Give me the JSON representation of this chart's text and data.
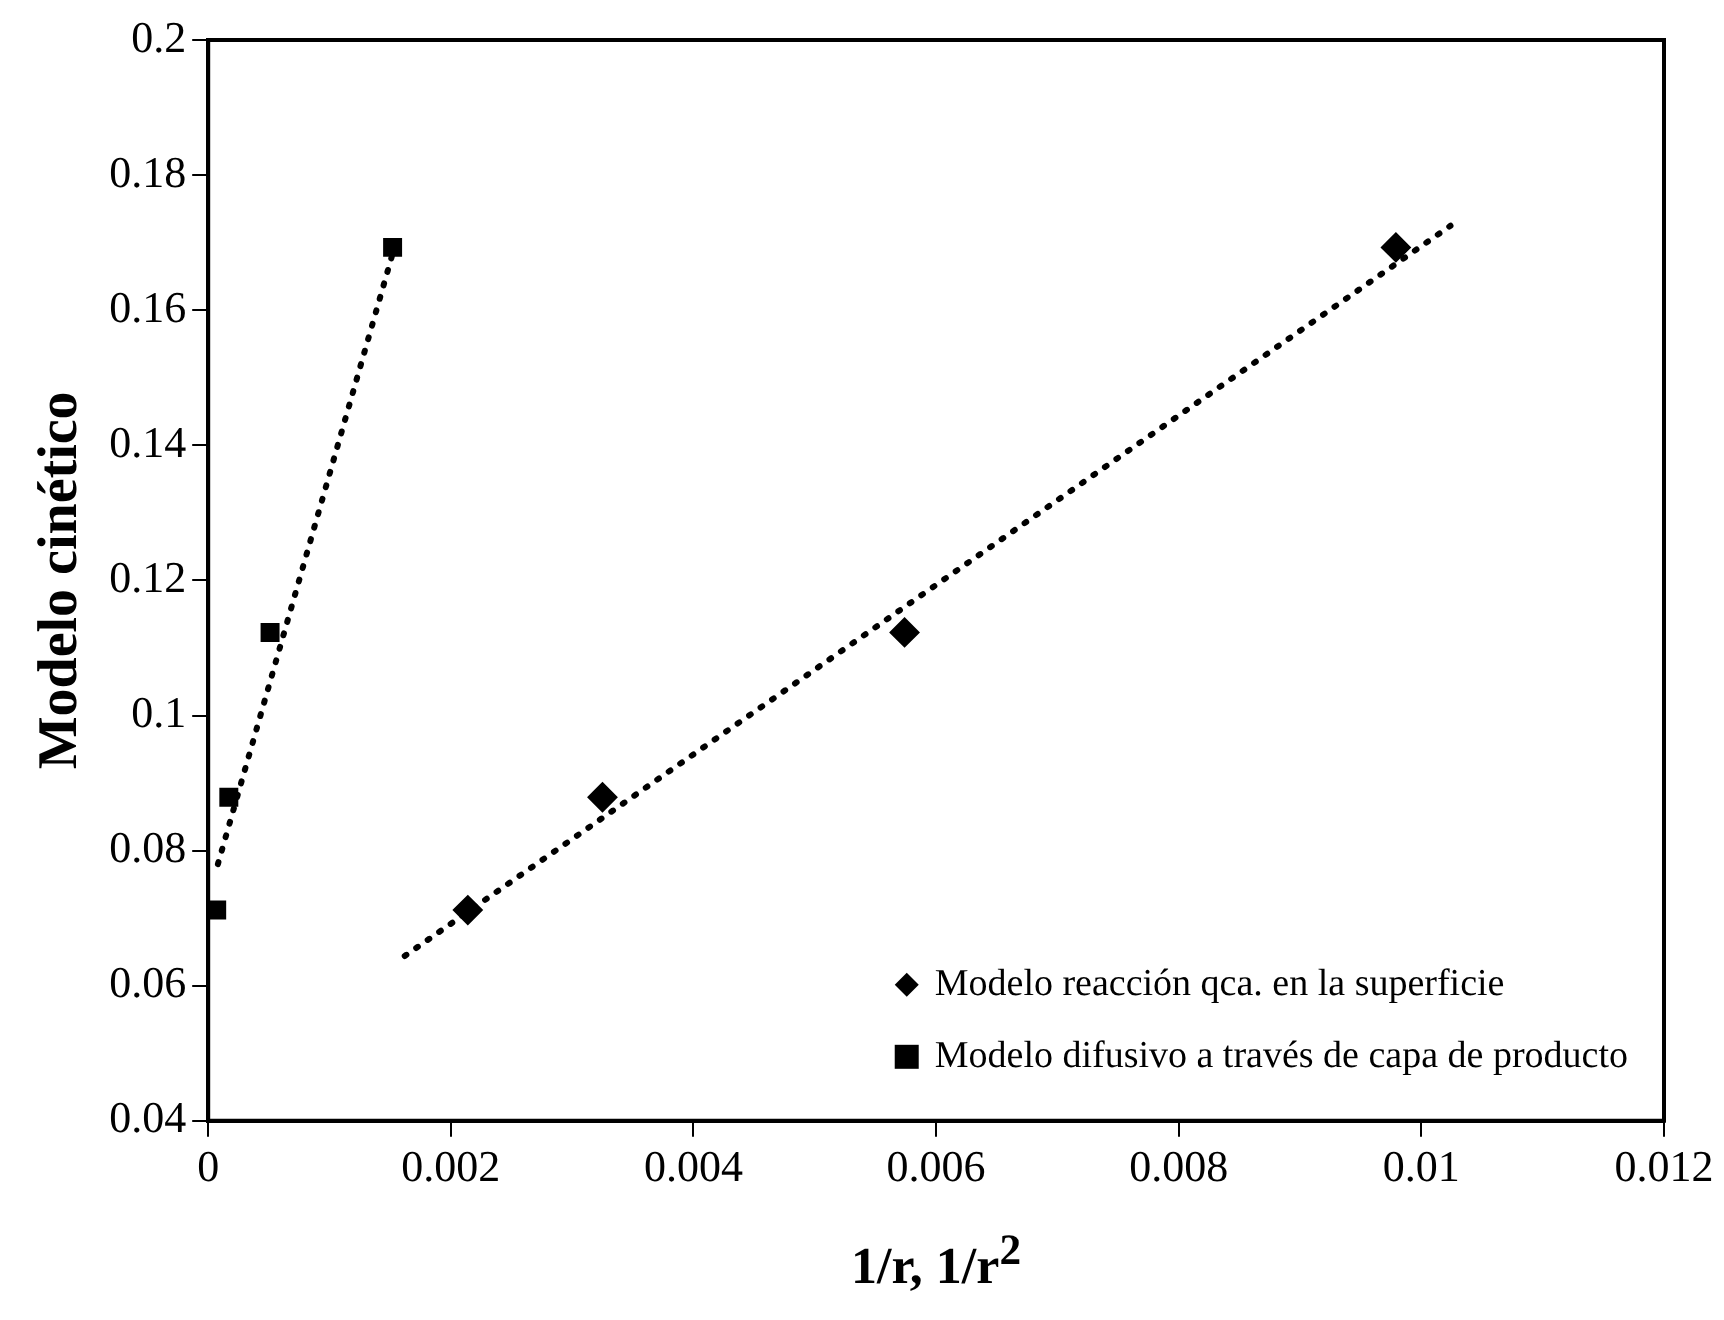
{
  "chart_data": {
    "type": "scatter",
    "xlabel": "1/r, 1/r$^{2}$",
    "ylabel": "Modelo cinético",
    "xlim": [
      0,
      0.012
    ],
    "xticks": [
      0,
      0.002,
      0.004,
      0.006,
      0.008,
      0.01,
      0.012
    ],
    "ylim": [
      0.04,
      0.2
    ],
    "yticks": [
      0.04,
      0.06,
      0.08,
      0.1,
      0.12,
      0.14,
      0.16,
      0.18,
      0.2
    ],
    "grid": false,
    "legend": "bottom right",
    "series": [
      {
        "name": "Modelo reacción qca. en la superficie",
        "color": "#000000",
        "marker": "diamond",
        "x": [
          0.00214,
          0.00325,
          0.00574,
          0.00979
        ],
        "values": [
          0.0712,
          0.0879,
          0.1123,
          0.1693
        ]
      },
      {
        "name": "Modelo difusivo a través de capa de producto",
        "color": "#000000",
        "marker": "square",
        "x": [
          7e-05,
          0.00017,
          0.00051,
          0.00152
        ],
        "values": [
          0.0712,
          0.0879,
          0.1123,
          0.1693
        ]
      },
      {
        "type": "line",
        "color": "#000000",
        "marker": "none",
        "line_style": "dotted",
        "x": [
          0.00162,
          0.01024
        ],
        "values": [
          0.0644,
          0.1725
        ]
      },
      {
        "type": "line",
        "color": "#000000",
        "marker": "none",
        "line_style": "dotted",
        "x": [
          8e-05,
          0.00157
        ],
        "values": [
          0.078,
          0.1715
        ]
      }
    ]
  }
}
